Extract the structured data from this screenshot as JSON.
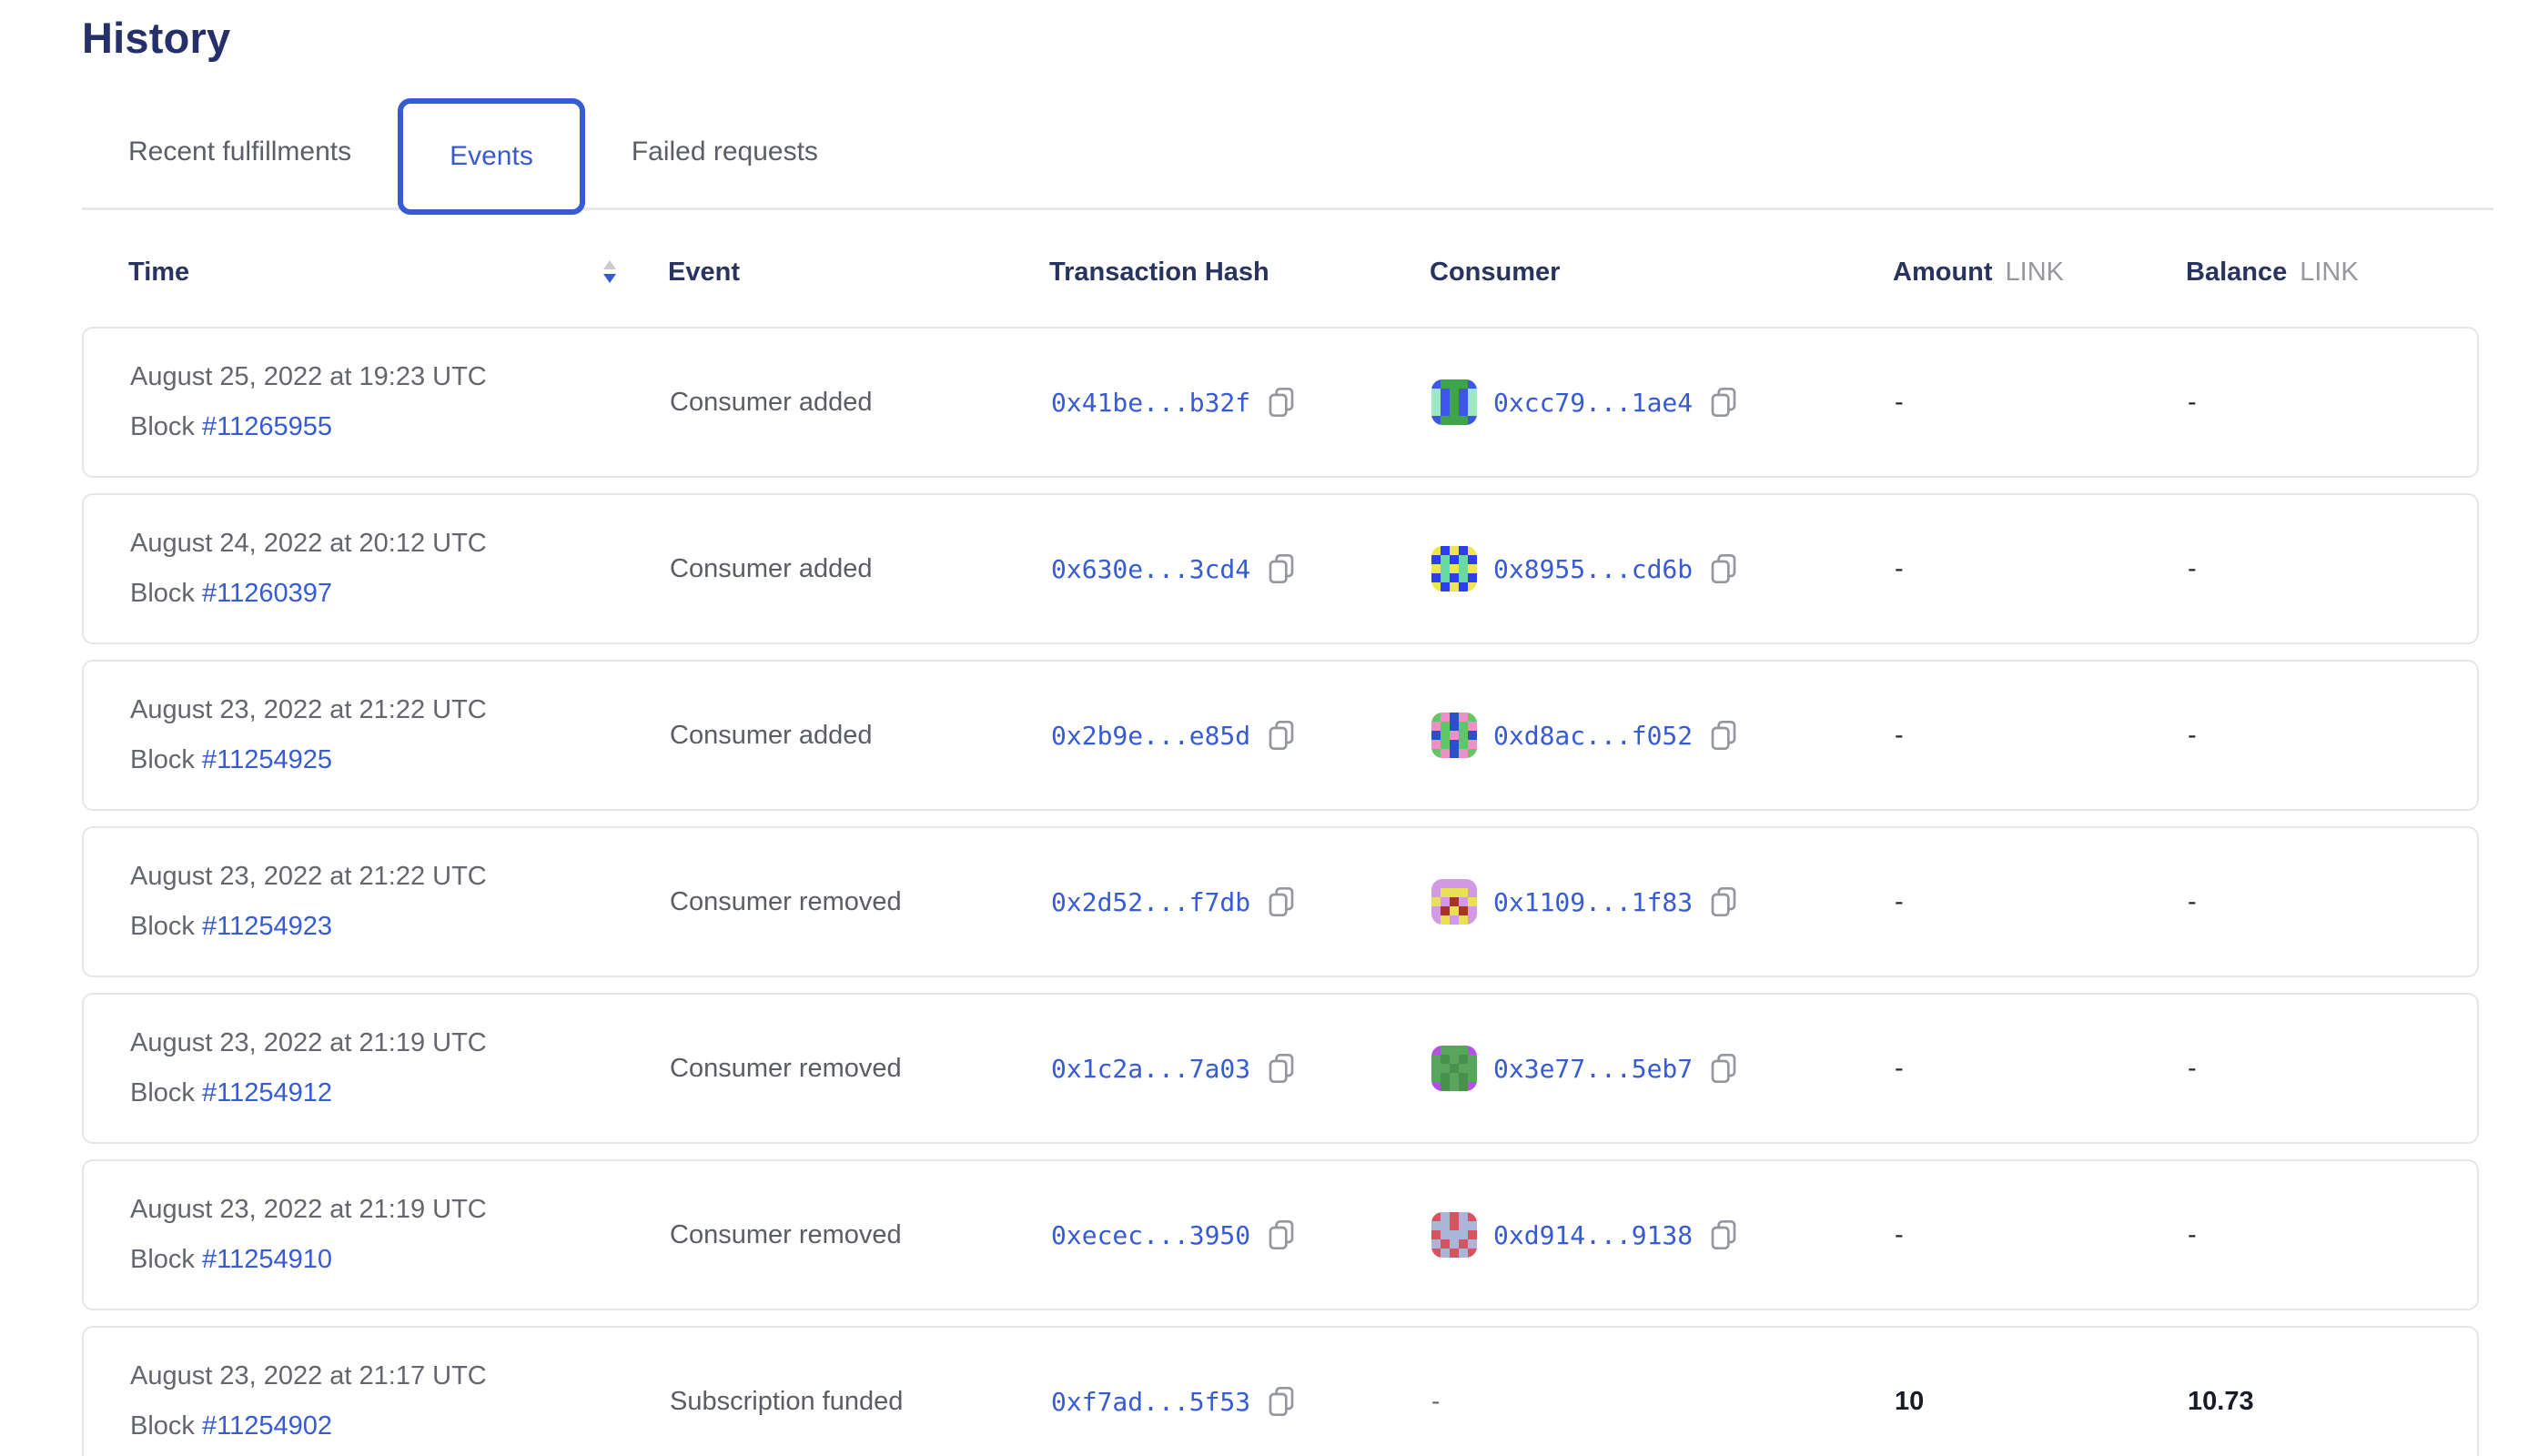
{
  "page": {
    "title": "History"
  },
  "tabs": [
    {
      "label": "Recent fulfillments",
      "active": false
    },
    {
      "label": "Events",
      "active": true
    },
    {
      "label": "Failed requests",
      "active": false
    }
  ],
  "colors": {
    "accent_blue": "#375bd2",
    "heading_navy": "#252f69",
    "text_gray": "#63666c",
    "border_gray": "#e5e6ea"
  },
  "table": {
    "block_prefix": "Block",
    "columns": {
      "time": "Time",
      "event": "Event",
      "tx": "Transaction Hash",
      "consumer": "Consumer",
      "amount": "Amount",
      "balance": "Balance",
      "unit": "LINK"
    },
    "sort": {
      "column": "time",
      "direction": "descending"
    },
    "rows": [
      {
        "date": "August 25, 2022 at 19:23 UTC",
        "block": "#11265955",
        "event": "Consumer added",
        "tx": "0x41be...b32f",
        "consumer": "0xcc79...1ae4",
        "amount": "-",
        "balance": "-",
        "icon": {
          "palette": {
            "b": "#3d55e8",
            "g": "#3fa34d",
            "m": "#9fe9c1"
          },
          "pixels": [
            "bgggb",
            "mbgbm",
            "mbgbm",
            "mbgbm",
            "bgggb"
          ]
        }
      },
      {
        "date": "August 24, 2022 at 20:12 UTC",
        "block": "#11260397",
        "event": "Consumer added",
        "tx": "0x630e...3cd4",
        "consumer": "0x8955...cd6b",
        "amount": "-",
        "balance": "-",
        "icon": {
          "palette": {
            "b": "#2b3ff0",
            "y": "#ede64f",
            "g": "#68d9a6"
          },
          "pixels": [
            "ybyby",
            "bgbgb",
            "ygygy",
            "bgbgb",
            "ybyby"
          ]
        }
      },
      {
        "date": "August 23, 2022 at 21:22 UTC",
        "block": "#11254925",
        "event": "Consumer added",
        "tx": "0x2b9e...e85d",
        "consumer": "0xd8ac...f052",
        "amount": "-",
        "balance": "-",
        "icon": {
          "palette": {
            "g": "#5ec766",
            "p": "#ef8fc8",
            "n": "#2b50c8"
          },
          "pixels": [
            "gpnpg",
            "pgngp",
            "ngpgn",
            "pgngp",
            "gpnpg"
          ]
        }
      },
      {
        "date": "August 23, 2022 at 21:22 UTC",
        "block": "#11254923",
        "event": "Consumer removed",
        "tx": "0x2d52...f7db",
        "consumer": "0x1109...1f83",
        "amount": "-",
        "balance": "-",
        "icon": {
          "palette": {
            "v": "#d29ae4",
            "y": "#e9e055",
            "r": "#a83326"
          },
          "pixels": [
            "vvvvv",
            "vyyyv",
            "yvrvy",
            "vryrv",
            "vyvyv"
          ]
        }
      },
      {
        "date": "August 23, 2022 at 21:19 UTC",
        "block": "#11254912",
        "event": "Consumer removed",
        "tx": "0x1c2a...7a03",
        "consumer": "0x3e77...5eb7",
        "amount": "-",
        "balance": "-",
        "icon": {
          "palette": {
            "u": "#b44fe8",
            "g": "#58a55e",
            "d": "#47904e"
          },
          "pixels": [
            "ugggu",
            "gdgdg",
            "ggdgg",
            "gdgdg",
            "udgdu"
          ]
        }
      },
      {
        "date": "August 23, 2022 at 21:19 UTC",
        "block": "#11254910",
        "event": "Consumer removed",
        "tx": "0xecec...3950",
        "consumer": "0xd914...9138",
        "amount": "-",
        "balance": "-",
        "icon": {
          "palette": {
            "r": "#d4545f",
            "s": "#a9b6da"
          },
          "pixels": [
            "rsrsr",
            "ssrss",
            "rsssr",
            "srsrs",
            "rsrsr"
          ]
        }
      },
      {
        "date": "August 23, 2022 at 21:17 UTC",
        "block": "#11254902",
        "event": "Subscription funded",
        "tx": "0xf7ad...5f53",
        "consumer": "-",
        "amount": "10",
        "balance": "10.73",
        "icon": null
      }
    ]
  }
}
